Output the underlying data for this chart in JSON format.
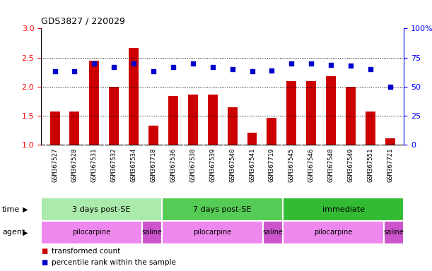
{
  "title": "GDS3827 / 220029",
  "samples": [
    "GSM367527",
    "GSM367528",
    "GSM367531",
    "GSM367532",
    "GSM367534",
    "GSM367718",
    "GSM367536",
    "GSM367538",
    "GSM367539",
    "GSM367540",
    "GSM367541",
    "GSM367719",
    "GSM367545",
    "GSM367546",
    "GSM367548",
    "GSM367549",
    "GSM367551",
    "GSM367721"
  ],
  "transformed_count": [
    1.57,
    1.57,
    2.45,
    2.0,
    2.67,
    1.33,
    1.84,
    1.87,
    1.87,
    1.65,
    1.21,
    1.47,
    2.09,
    2.09,
    2.18,
    2.0,
    1.57,
    1.12
  ],
  "percentile_rank": [
    63,
    63,
    70,
    67,
    70,
    63,
    67,
    70,
    67,
    65,
    63,
    64,
    70,
    70,
    69,
    68,
    65,
    50
  ],
  "bar_color": "#cc0000",
  "dot_color": "#0000cc",
  "ylim_left": [
    1.0,
    3.0
  ],
  "ylim_right": [
    0,
    100
  ],
  "yticks_left": [
    1.0,
    1.5,
    2.0,
    2.5,
    3.0
  ],
  "yticks_right": [
    0,
    25,
    50,
    75,
    100
  ],
  "hlines": [
    1.5,
    2.0,
    2.5
  ],
  "time_groups": [
    {
      "label": "3 days post-SE",
      "start": 0,
      "end": 6,
      "color": "#aaeaaa"
    },
    {
      "label": "7 days post-SE",
      "start": 6,
      "end": 12,
      "color": "#55cc55"
    },
    {
      "label": "immediate",
      "start": 12,
      "end": 18,
      "color": "#33bb33"
    }
  ],
  "agent_groups": [
    {
      "label": "pilocarpine",
      "start": 0,
      "end": 5,
      "color": "#ee88ee"
    },
    {
      "label": "saline",
      "start": 5,
      "end": 6,
      "color": "#cc55cc"
    },
    {
      "label": "pilocarpine",
      "start": 6,
      "end": 11,
      "color": "#ee88ee"
    },
    {
      "label": "saline",
      "start": 11,
      "end": 12,
      "color": "#cc55cc"
    },
    {
      "label": "pilocarpine",
      "start": 12,
      "end": 17,
      "color": "#ee88ee"
    },
    {
      "label": "saline",
      "start": 17,
      "end": 18,
      "color": "#cc55cc"
    }
  ],
  "legend_bar_color": "#cc0000",
  "legend_dot_color": "#0000cc",
  "legend_bar_label": "transformed count",
  "legend_dot_label": "percentile rank within the sample",
  "background_color": "#ffffff",
  "label_bg_color": "#dddddd"
}
